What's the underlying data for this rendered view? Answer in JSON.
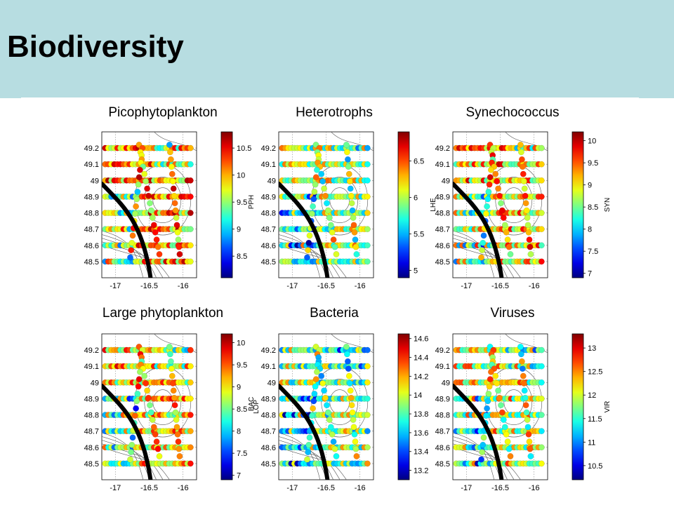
{
  "page": {
    "title": "Biodiversity",
    "colors": {
      "header_bg": "#b7dde1",
      "boundary": "#000000"
    }
  },
  "chart_data": [
    {
      "type": "scatter",
      "title": "Picophytoplankton",
      "colorbar_label": "",
      "cticks": [
        8.5,
        9,
        9.5,
        10,
        10.5
      ],
      "crange": [
        8.1,
        10.8
      ],
      "x_ticks": [
        "-17",
        "-16.5",
        "-16"
      ],
      "y_ticks": [
        "49.2",
        "49.1",
        "49",
        "48.9",
        "48.8",
        "48.7",
        "48.6",
        "48.5"
      ],
      "xlim": [
        -17.2,
        -15.8
      ],
      "ylim": [
        48.4,
        49.3
      ],
      "bias": 0.72,
      "seed": 11
    },
    {
      "type": "scatter",
      "title": "Heterotrophs",
      "colorbar_label": "LHE",
      "ylabel": "PPH",
      "cticks": [
        5,
        5.5,
        6,
        6.5
      ],
      "crange": [
        4.9,
        6.9
      ],
      "x_ticks": [
        "-17",
        "-16.5",
        "-16"
      ],
      "y_ticks": [
        "49.2",
        "49.1",
        "49",
        "48.9",
        "48.8",
        "48.7",
        "48.6",
        "48.5"
      ],
      "xlim": [
        -17.2,
        -15.8
      ],
      "ylim": [
        48.4,
        49.3
      ],
      "bias": 0.55,
      "seed": 23
    },
    {
      "type": "scatter",
      "title": "Synechococcus",
      "colorbar_label": "SYN",
      "cticks": [
        7,
        7.5,
        8,
        8.5,
        9,
        9.5,
        10
      ],
      "crange": [
        6.9,
        10.2
      ],
      "x_ticks": [
        "-17",
        "-16.5",
        "-16"
      ],
      "y_ticks": [
        "49.2",
        "49.1",
        "49",
        "48.9",
        "48.8",
        "48.7",
        "48.6",
        "48.5"
      ],
      "xlim": [
        -17.2,
        -15.8
      ],
      "ylim": [
        48.4,
        49.3
      ],
      "bias": 0.68,
      "seed": 37
    },
    {
      "type": "scatter",
      "title": "Large phytoplankton",
      "colorbar_label": "LOP",
      "cticks": [
        7,
        7.5,
        8,
        8.5,
        9,
        9.5,
        10
      ],
      "crange": [
        6.9,
        10.2
      ],
      "x_ticks": [
        "-17",
        "-16.5",
        "-16"
      ],
      "y_ticks": [
        "49.2",
        "49.1",
        "49",
        "48.9",
        "48.8",
        "48.7",
        "48.6",
        "48.5"
      ],
      "xlim": [
        -17.2,
        -15.8
      ],
      "ylim": [
        48.4,
        49.3
      ],
      "bias": 0.66,
      "seed": 41
    },
    {
      "type": "scatter",
      "title": "Bacteria",
      "colorbar_label": "",
      "ylabel": "BAC",
      "cticks": [
        13.2,
        13.4,
        13.6,
        13.8,
        14,
        14.2,
        14.4,
        14.6
      ],
      "crange": [
        13.1,
        14.65
      ],
      "x_ticks": [
        "-17",
        "-16.5",
        "-16"
      ],
      "y_ticks": [
        "49.2",
        "49.1",
        "49",
        "48.9",
        "48.8",
        "48.7",
        "48.6",
        "48.5"
      ],
      "xlim": [
        -17.2,
        -15.8
      ],
      "ylim": [
        48.4,
        49.3
      ],
      "bias": 0.5,
      "seed": 53
    },
    {
      "type": "scatter",
      "title": "Viruses",
      "colorbar_label": "VIR",
      "cticks": [
        10.5,
        11,
        11.5,
        12,
        12.5,
        13
      ],
      "crange": [
        10.2,
        13.3
      ],
      "x_ticks": [
        "-17",
        "-16.5",
        "-16"
      ],
      "y_ticks": [
        "49.2",
        "49.1",
        "49",
        "48.9",
        "48.8",
        "48.7",
        "48.6",
        "48.5"
      ],
      "xlim": [
        -17.2,
        -15.8
      ],
      "ylim": [
        48.4,
        49.3
      ],
      "bias": 0.6,
      "seed": 67
    }
  ]
}
